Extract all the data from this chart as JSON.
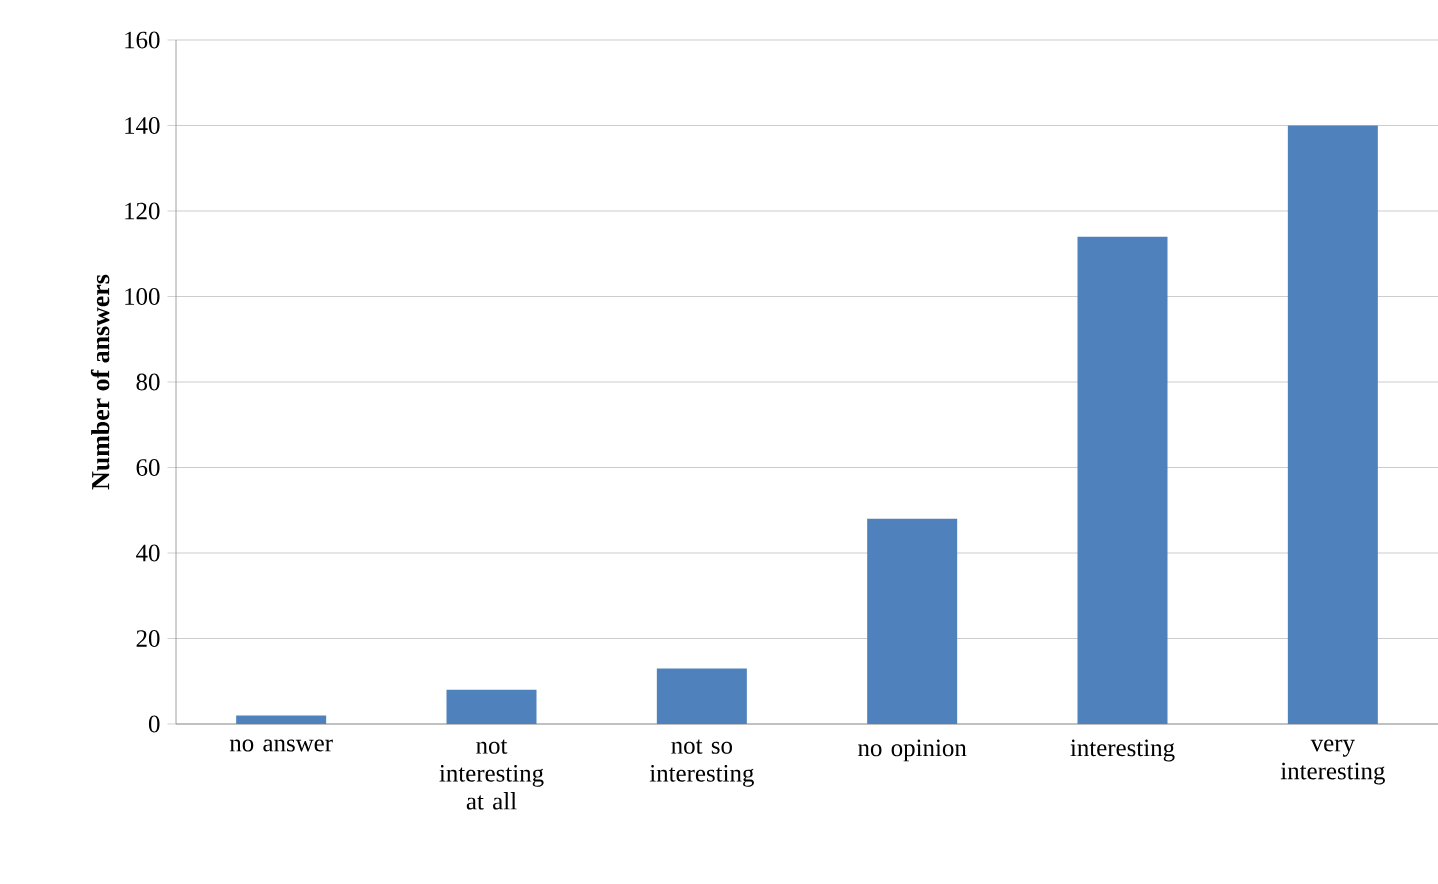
{
  "chart_data": {
    "type": "bar",
    "ylabel": "Number of answers",
    "categories": [
      "no answer",
      "not interesting at all",
      "not so interesting",
      "no opinion",
      "interesting",
      "very interesting"
    ],
    "values": [
      2,
      8,
      13,
      48,
      114,
      140
    ],
    "color": "#4f81bd",
    "ylim": [
      0,
      160
    ],
    "yticks": [
      0,
      20,
      40,
      60,
      80,
      100,
      120,
      140,
      160
    ],
    "grid": "y"
  }
}
